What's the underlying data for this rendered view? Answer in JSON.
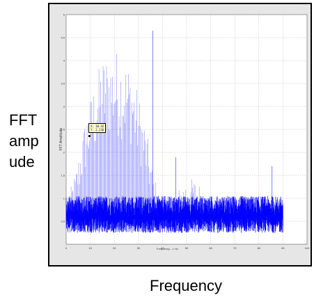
{
  "outer_labels": {
    "ylabel_lines": [
      "FFT",
      "amp",
      "ude"
    ],
    "xlabel": "Frequency"
  },
  "colors": {
    "signal": "#0000ff",
    "plot_bg": "#ffffff",
    "frame_bg": "#e6e6e6",
    "grid": "#b3b3b3"
  },
  "chart_data": {
    "type": "line",
    "xlabel": "Frequency --> Hz",
    "ylabel": "FFT Amplitude",
    "xlim": [
      0,
      100
    ],
    "ylim": [
      0,
      5
    ],
    "x_ticks": [
      0,
      10,
      20,
      30,
      40,
      50,
      60,
      70,
      80,
      90,
      100
    ],
    "y_ticks": [
      0.5,
      1,
      1.5,
      2,
      2.5,
      3,
      3.5,
      4,
      4.5,
      5
    ],
    "grid": true,
    "noise_floor": {
      "x_range": [
        0,
        90
      ],
      "min": 0.25,
      "max": 1.05,
      "typical": 0.6
    },
    "envelope": [
      {
        "x": 0,
        "y": 0.9
      },
      {
        "x": 4,
        "y": 1.6
      },
      {
        "x": 8,
        "y": 2.8
      },
      {
        "x": 12,
        "y": 3.6
      },
      {
        "x": 15,
        "y": 4.1
      },
      {
        "x": 18,
        "y": 4.2
      },
      {
        "x": 21,
        "y": 4.25
      },
      {
        "x": 24,
        "y": 4.1
      },
      {
        "x": 27,
        "y": 3.9
      },
      {
        "x": 30,
        "y": 3.3
      },
      {
        "x": 33,
        "y": 2.6
      },
      {
        "x": 36,
        "y": 1.6
      },
      {
        "x": 39,
        "y": 1.0
      },
      {
        "x": 42,
        "y": 0.9
      },
      {
        "x": 45,
        "y": 1.1
      },
      {
        "x": 48,
        "y": 1.3
      },
      {
        "x": 51,
        "y": 1.45
      },
      {
        "x": 54,
        "y": 1.4
      },
      {
        "x": 57,
        "y": 1.2
      },
      {
        "x": 60,
        "y": 1.0
      },
      {
        "x": 75,
        "y": 1.0
      },
      {
        "x": 90,
        "y": 1.0
      }
    ],
    "spikes": [
      {
        "x": 36,
        "y": 4.65
      },
      {
        "x": 85.5,
        "y": 1.7
      },
      {
        "x": 38.5,
        "y": 0.9
      },
      {
        "x": 45.5,
        "y": 1.9
      }
    ],
    "datatip": {
      "x": 10.42,
      "y": 2.236,
      "lines": [
        "X: 10.42",
        "Y: 2.236"
      ]
    }
  }
}
